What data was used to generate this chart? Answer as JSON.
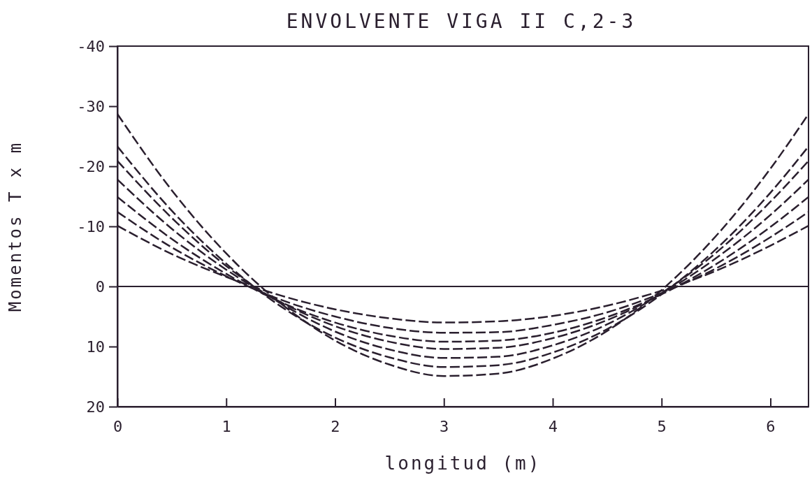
{
  "chart_data": {
    "type": "line",
    "title": "ENVOLVENTE VIGA II C,2-3",
    "xlabel": "longitud (m)",
    "ylabel": "Momentos T x m",
    "x": [
      0,
      0.5,
      1,
      1.5,
      2,
      2.5,
      3,
      3.5,
      4,
      4.5,
      5,
      5.5,
      6,
      6.35
    ],
    "series": [
      {
        "color": "#2a1f2e",
        "values": [
          -28.7,
          -16.0,
          -5.5,
          2.8,
          9.0,
          13.0,
          14.9,
          14.5,
          12.0,
          7.4,
          0.6,
          -8.4,
          -19.6,
          -28.7
        ]
      },
      {
        "color": "#2a1f2e",
        "values": [
          -23.3,
          -12.6,
          -3.8,
          3.3,
          8.5,
          11.8,
          13.4,
          13.1,
          11.0,
          7.1,
          1.3,
          -6.2,
          -15.6,
          -23.3
        ]
      },
      {
        "color": "#2a1f2e",
        "values": [
          -20.9,
          -11.4,
          -3.4,
          2.8,
          7.5,
          10.5,
          11.9,
          11.7,
          9.8,
          6.3,
          1.1,
          -5.6,
          -14.1,
          -20.9
        ]
      },
      {
        "color": "#2a1f2e",
        "values": [
          -17.8,
          -9.6,
          -2.8,
          2.6,
          6.6,
          9.2,
          10.4,
          10.2,
          8.6,
          5.6,
          1.2,
          -4.7,
          -11.9,
          -17.8
        ]
      },
      {
        "color": "#2a1f2e",
        "values": [
          -14.9,
          -7.9,
          -2.1,
          2.6,
          6.0,
          8.2,
          9.2,
          9.0,
          7.7,
          5.1,
          1.3,
          -3.7,
          -9.9,
          -14.9
        ]
      },
      {
        "color": "#2a1f2e",
        "values": [
          -12.4,
          -6.5,
          -1.7,
          2.2,
          5.0,
          6.9,
          7.7,
          7.6,
          6.4,
          4.3,
          1.1,
          -3.0,
          -8.2,
          -12.4
        ]
      },
      {
        "color": "#2a1f2e",
        "values": [
          -10.1,
          -5.4,
          -1.6,
          1.5,
          3.8,
          5.3,
          6.0,
          5.8,
          4.9,
          3.2,
          0.7,
          -2.6,
          -6.8,
          -10.1
        ]
      }
    ],
    "xlim": [
      0,
      6.35
    ],
    "xticks": [
      0,
      1,
      2,
      3,
      4,
      5,
      6
    ],
    "ylim": [
      20,
      -40
    ],
    "yticks": [
      -40,
      -30,
      -20,
      -10,
      0,
      10,
      20
    ],
    "ref_lines": [
      {
        "axis": "y",
        "value": 0,
        "color": "#2a1f2e",
        "line_style": "solid"
      }
    ],
    "line_style": "dashed",
    "marker": "none",
    "grid": false
  }
}
